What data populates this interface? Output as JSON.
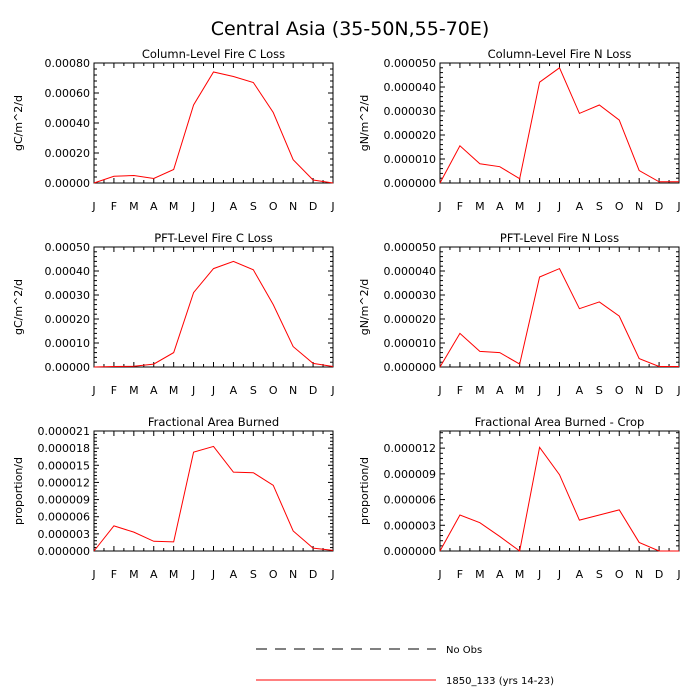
{
  "title": "Central Asia (35-50N,55-70E)",
  "legend": [
    {
      "label": "No Obs",
      "style": "dashed",
      "color": "#000000"
    },
    {
      "label": "1850_133 (yrs 14-23)",
      "style": "solid",
      "color": "#ff0000"
    }
  ],
  "colors": {
    "series": "#ff0000",
    "axis": "#000000",
    "background": "#ffffff"
  },
  "chart_data": [
    {
      "type": "line",
      "title": "Column-Level Fire C Loss",
      "ylabel": "gC/m^2/d",
      "categories": [
        "J",
        "F",
        "M",
        "A",
        "M",
        "J",
        "J",
        "A",
        "S",
        "O",
        "N",
        "D",
        "J"
      ],
      "ylim": [
        0,
        0.0008
      ],
      "yticks": [
        0,
        0.0002,
        0.0004,
        0.0006,
        0.0008
      ],
      "ytick_labels": [
        "0.00000",
        "0.00020",
        "0.00040",
        "0.00060",
        "0.00080"
      ],
      "series": [
        {
          "name": "1850_133 (yrs 14-23)",
          "values": [
            0.0,
            4.5e-05,
            5e-05,
            3e-05,
            9e-05,
            0.00052,
            0.00074,
            0.00071,
            0.00067,
            0.00047,
            0.000155,
            2e-05,
            0.0
          ]
        }
      ]
    },
    {
      "type": "line",
      "title": "Column-Level Fire N Loss",
      "ylabel": "gN/m^2/d",
      "categories": [
        "J",
        "F",
        "M",
        "A",
        "M",
        "J",
        "J",
        "A",
        "S",
        "O",
        "N",
        "D",
        "J"
      ],
      "ylim": [
        0,
        5e-05
      ],
      "yticks": [
        0,
        1e-05,
        2e-05,
        3e-05,
        4e-05,
        5e-05
      ],
      "ytick_labels": [
        "0.000000",
        "0.000010",
        "0.000020",
        "0.000030",
        "0.000040",
        "0.000050"
      ],
      "series": [
        {
          "name": "1850_133 (yrs 14-23)",
          "values": [
            0.0,
            1.55e-05,
            8e-06,
            6.8e-06,
            1.8e-06,
            4.2e-05,
            4.8e-05,
            2.9e-05,
            3.25e-05,
            2.62e-05,
            5.2e-06,
            5e-07,
            5e-07
          ]
        }
      ]
    },
    {
      "type": "line",
      "title": "PFT-Level Fire C Loss",
      "ylabel": "gC/m^2/d",
      "categories": [
        "J",
        "F",
        "M",
        "A",
        "M",
        "J",
        "J",
        "A",
        "S",
        "O",
        "N",
        "D",
        "J"
      ],
      "ylim": [
        0,
        0.0005
      ],
      "yticks": [
        0,
        0.0001,
        0.0002,
        0.0003,
        0.0004,
        0.0005
      ],
      "ytick_labels": [
        "0.00000",
        "0.00010",
        "0.00020",
        "0.00030",
        "0.00040",
        "0.00050"
      ],
      "series": [
        {
          "name": "1850_133 (yrs 14-23)",
          "values": [
            0.0,
            2e-06,
            3e-06,
            1.2e-05,
            6e-05,
            0.00031,
            0.00041,
            0.00044,
            0.000405,
            0.00026,
            8.5e-05,
            1.5e-05,
            2e-06
          ]
        }
      ]
    },
    {
      "type": "line",
      "title": "PFT-Level Fire N Loss",
      "ylabel": "gN/m^2/d",
      "categories": [
        "J",
        "F",
        "M",
        "A",
        "M",
        "J",
        "J",
        "A",
        "S",
        "O",
        "N",
        "D",
        "J"
      ],
      "ylim": [
        0,
        5e-05
      ],
      "yticks": [
        0,
        1e-05,
        2e-05,
        3e-05,
        4e-05,
        5e-05
      ],
      "ytick_labels": [
        "0.000000",
        "0.000010",
        "0.000020",
        "0.000030",
        "0.000040",
        "0.000050"
      ],
      "series": [
        {
          "name": "1850_133 (yrs 14-23)",
          "values": [
            0.0,
            1.4e-05,
            6.5e-06,
            6e-06,
            1.2e-06,
            3.75e-05,
            4.1e-05,
            2.43e-05,
            2.71e-05,
            2.12e-05,
            3.5e-06,
            2e-07,
            2e-07
          ]
        }
      ]
    },
    {
      "type": "line",
      "title": "Fractional Area Burned",
      "ylabel": "proportion/d",
      "categories": [
        "J",
        "F",
        "M",
        "A",
        "M",
        "J",
        "J",
        "A",
        "S",
        "O",
        "N",
        "D",
        "J"
      ],
      "ylim": [
        0,
        2.1e-05
      ],
      "yticks": [
        0,
        3e-06,
        6e-06,
        9e-06,
        1.2e-05,
        1.5e-05,
        1.8e-05,
        2.1e-05
      ],
      "ytick_labels": [
        "0.000000",
        "0.000003",
        "0.000006",
        "0.000009",
        "0.000012",
        "0.000015",
        "0.000018",
        "0.000021"
      ],
      "series": [
        {
          "name": "1850_133 (yrs 14-23)",
          "values": [
            0.0,
            4.4e-06,
            3.3e-06,
            1.7e-06,
            1.6e-06,
            1.73e-05,
            1.83e-05,
            1.38e-05,
            1.37e-05,
            1.15e-05,
            3.5e-06,
            5e-07,
            1e-07
          ]
        }
      ]
    },
    {
      "type": "line",
      "title": "Fractional Area Burned - Crop",
      "ylabel": "proportion/d",
      "categories": [
        "J",
        "F",
        "M",
        "A",
        "M",
        "J",
        "J",
        "A",
        "S",
        "O",
        "N",
        "D",
        "J"
      ],
      "ylim": [
        0,
        1.4e-05
      ],
      "yticks": [
        0,
        3e-06,
        6e-06,
        9e-06,
        1.2e-05
      ],
      "ytick_labels": [
        "0.000000",
        "0.000003",
        "0.000006",
        "0.000009",
        "0.000012"
      ],
      "series": [
        {
          "name": "1850_133 (yrs 14-23)",
          "values": [
            0.0,
            4.2e-06,
            3.3e-06,
            1.7e-06,
            0.0,
            1.21e-05,
            8.9e-06,
            3.6e-06,
            4.2e-06,
            4.8e-06,
            1e-06,
            0.0,
            0.0
          ]
        }
      ]
    }
  ]
}
